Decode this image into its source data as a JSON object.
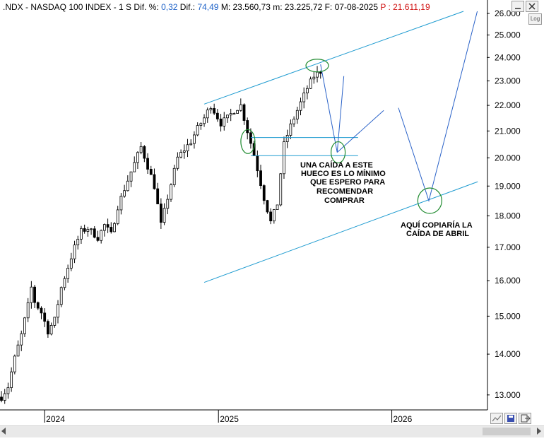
{
  "header": {
    "symbol": ".NDX - NASDAQ 100 INDEX - ",
    "timeframe": " 1 S",
    "dif_pct_label": "  Dif. %: ",
    "dif_pct_value": "0,32",
    "dif_label": "  Dif.: ",
    "dif_value": "74,49",
    "max_label": "  M: ",
    "max_value": "23.560,73",
    "min_label": "  m: ",
    "min_value": "23.225,72",
    "date_label": "  F: ",
    "date_value": "07-08-2025",
    "p_label": "  P : ",
    "p_value": "21.611,19"
  },
  "toolbar": {
    "log_label": "Log",
    "minimize_icon": "minimize-icon",
    "close_icon": "close-icon",
    "chart_icon": "chart-icon",
    "save_icon": "save-icon",
    "exit_icon": "exit-icon"
  },
  "annotations": {
    "note_buy": [
      "UNA CAÍDA A ESTE",
      "HUECO ES LO MÍNIMO",
      "QUE ESPERO PARA",
      "RECOMENDAR",
      "COMPRAR"
    ],
    "note_april": [
      "AQUÍ  COPIARÍA LA",
      "CAÍDA DE ABRIL"
    ]
  },
  "colors": {
    "line": "#1e9bd0",
    "path": "#2a62c8",
    "circle": "#1e8a2e",
    "candle": "#000000"
  },
  "chart_data": {
    "type": "candlestick",
    "xlabel": "",
    "ylabel": "",
    "x_ticks": [
      "2024",
      "2025",
      "2026"
    ],
    "y_ticks": [
      "13.000",
      "14.000",
      "15.000",
      "16.000",
      "17.000",
      "18.000",
      "19.000",
      "20.000",
      "21.000",
      "22.000",
      "23.000",
      "24.000",
      "25.000",
      "26.000"
    ],
    "y_ticks_values": [
      13000,
      14000,
      15000,
      16000,
      17000,
      18000,
      19000,
      20000,
      21000,
      22000,
      23000,
      24000,
      25000,
      26000
    ],
    "ylim": [
      12700,
      26100
    ],
    "y_scale": "log",
    "x_ticks_dates": [
      "2024-01-01",
      "2025-01-01",
      "2026-01-01"
    ],
    "xlim": [
      "2023-09-29",
      "2026-07-20"
    ],
    "last_price": 21611.19,
    "series_weekly_close": [
      {
        "date": "2023-10-02",
        "close": 12950
      },
      {
        "date": "2023-10-16",
        "close": 13200
      },
      {
        "date": "2023-10-30",
        "close": 13900
      },
      {
        "date": "2023-11-13",
        "close": 14500
      },
      {
        "date": "2023-11-27",
        "close": 15300
      },
      {
        "date": "2023-12-04",
        "close": 15800
      },
      {
        "date": "2023-12-11",
        "close": 15400
      },
      {
        "date": "2023-12-25",
        "close": 15100
      },
      {
        "date": "2024-01-08",
        "close": 14600
      },
      {
        "date": "2024-01-22",
        "close": 14900
      },
      {
        "date": "2024-02-05",
        "close": 15800
      },
      {
        "date": "2024-02-19",
        "close": 16400
      },
      {
        "date": "2024-03-04",
        "close": 17000
      },
      {
        "date": "2024-03-18",
        "close": 17500
      },
      {
        "date": "2024-04-01",
        "close": 17600
      },
      {
        "date": "2024-04-22",
        "close": 17300
      },
      {
        "date": "2024-05-06",
        "close": 17700
      },
      {
        "date": "2024-05-20",
        "close": 17400
      },
      {
        "date": "2024-06-03",
        "close": 18300
      },
      {
        "date": "2024-06-17",
        "close": 18900
      },
      {
        "date": "2024-07-08",
        "close": 19800
      },
      {
        "date": "2024-07-22",
        "close": 20400
      },
      {
        "date": "2024-08-05",
        "close": 19700
      },
      {
        "date": "2024-08-19",
        "close": 19000
      },
      {
        "date": "2024-09-02",
        "close": 17700
      },
      {
        "date": "2024-09-16",
        "close": 18600
      },
      {
        "date": "2024-10-07",
        "close": 20000
      },
      {
        "date": "2024-10-21",
        "close": 20300
      },
      {
        "date": "2024-11-04",
        "close": 20600
      },
      {
        "date": "2024-11-18",
        "close": 21100
      },
      {
        "date": "2024-12-02",
        "close": 21500
      },
      {
        "date": "2024-12-16",
        "close": 22000
      },
      {
        "date": "2025-01-06",
        "close": 21300
      },
      {
        "date": "2025-01-20",
        "close": 21500
      },
      {
        "date": "2025-02-03",
        "close": 21800
      },
      {
        "date": "2025-02-17",
        "close": 22000
      },
      {
        "date": "2025-03-03",
        "close": 21000
      },
      {
        "date": "2025-03-17",
        "close": 20100
      },
      {
        "date": "2025-04-07",
        "close": 18600
      },
      {
        "date": "2025-04-21",
        "close": 17800
      },
      {
        "date": "2025-05-05",
        "close": 18400
      },
      {
        "date": "2025-05-19",
        "close": 20500
      },
      {
        "date": "2025-06-02",
        "close": 21200
      },
      {
        "date": "2025-06-16",
        "close": 21800
      },
      {
        "date": "2025-07-07",
        "close": 22700
      },
      {
        "date": "2025-07-21",
        "close": 23200
      },
      {
        "date": "2025-08-04",
        "close": 23400
      }
    ]
  }
}
